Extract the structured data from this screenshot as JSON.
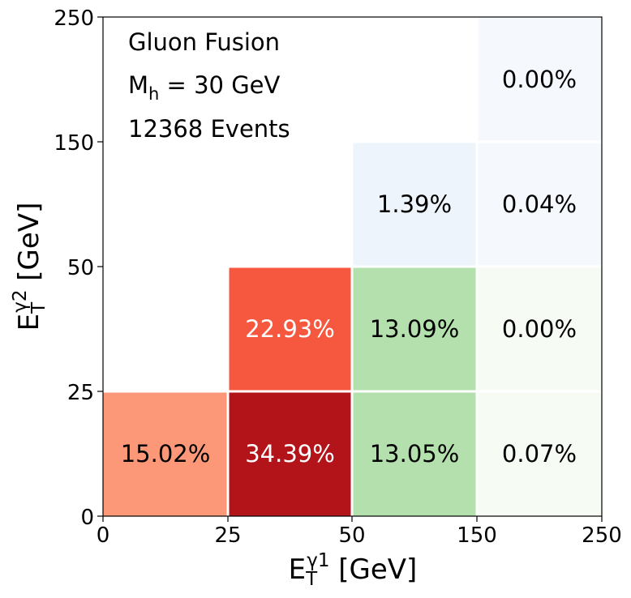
{
  "chart_data": {
    "type": "heatmap",
    "x_bin_edges": [
      "0",
      "25",
      "50",
      "150",
      "250"
    ],
    "y_bin_edges": [
      "0",
      "25",
      "50",
      "150",
      "250"
    ],
    "xlabel": {
      "base": "E",
      "sub": "T",
      "sup": "γ1",
      "unit": " [GeV]"
    },
    "ylabel": {
      "base": "E",
      "sub": "T",
      "sup": "γ2",
      "unit": " [GeV]"
    },
    "annotations": {
      "process": "Gluon Fusion",
      "mass_symbol": "M",
      "mass_sub": "h",
      "mass_value": " = 30 GeV",
      "events": "12368 Events"
    },
    "cells": [
      {
        "x_bin": 0,
        "y_bin": 0,
        "label": "15.02%",
        "value": 15.02,
        "color": "#fc9778",
        "text_color": "#000000"
      },
      {
        "x_bin": 1,
        "y_bin": 0,
        "label": "34.39%",
        "value": 34.39,
        "color": "#b2141a",
        "text_color": "#ffffff"
      },
      {
        "x_bin": 1,
        "y_bin": 1,
        "label": "22.93%",
        "value": 22.93,
        "color": "#f5583f",
        "text_color": "#ffffff"
      },
      {
        "x_bin": 2,
        "y_bin": 0,
        "label": "13.05%",
        "value": 13.05,
        "color": "#b4e0ae",
        "text_color": "#000000"
      },
      {
        "x_bin": 2,
        "y_bin": 1,
        "label": "13.09%",
        "value": 13.09,
        "color": "#b4e0ae",
        "text_color": "#000000"
      },
      {
        "x_bin": 2,
        "y_bin": 2,
        "label": "1.39%",
        "value": 1.39,
        "color": "#eef4fb",
        "text_color": "#000000"
      },
      {
        "x_bin": 3,
        "y_bin": 0,
        "label": "0.07%",
        "value": 0.07,
        "color": "#f6fbf3",
        "text_color": "#000000"
      },
      {
        "x_bin": 3,
        "y_bin": 1,
        "label": "0.00%",
        "value": 0.0,
        "color": "#f6fbf3",
        "text_color": "#000000"
      },
      {
        "x_bin": 3,
        "y_bin": 2,
        "label": "0.04%",
        "value": 0.04,
        "color": "#f5f9fe",
        "text_color": "#000000"
      },
      {
        "x_bin": 3,
        "y_bin": 3,
        "label": "0.00%",
        "value": 0.0,
        "color": "#f5f9fe",
        "text_color": "#000000"
      }
    ]
  }
}
